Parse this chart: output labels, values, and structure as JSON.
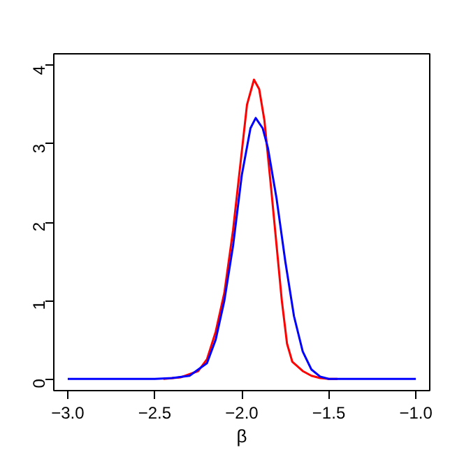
{
  "chart_data": {
    "type": "line",
    "xlabel": "β",
    "xlim": [
      -3.08,
      -0.92
    ],
    "ylim": [
      -0.15,
      4.15
    ],
    "xticks": [
      {
        "value": -3,
        "label": "−3.0"
      },
      {
        "value": -2.5,
        "label": "−2.5"
      },
      {
        "value": -2,
        "label": "−2.0"
      },
      {
        "value": -1.5,
        "label": "−1.5"
      },
      {
        "value": -1,
        "label": "−1.0"
      }
    ],
    "yticks": [
      0,
      1,
      2,
      3,
      4
    ],
    "grid": false,
    "series": [
      {
        "color": "#0000ff",
        "x": [
          -3.0,
          -2.5,
          -2.4,
          -2.3,
          -2.2,
          -2.15,
          -2.1,
          -2.05,
          -2.0,
          -1.95,
          -1.92,
          -1.88,
          -1.85,
          -1.8,
          -1.75,
          -1.7,
          -1.65,
          -1.6,
          -1.55,
          -1.5,
          -1.0
        ],
        "values": [
          0,
          0,
          0.01,
          0.04,
          0.2,
          0.5,
          1.0,
          1.7,
          2.6,
          3.2,
          3.33,
          3.2,
          2.95,
          2.3,
          1.5,
          0.8,
          0.35,
          0.12,
          0.03,
          0,
          0
        ]
      },
      {
        "color": "#ff0000",
        "x": [
          -2.45,
          -2.35,
          -2.25,
          -2.2,
          -2.15,
          -2.1,
          -2.05,
          -2.0,
          -1.97,
          -1.93,
          -1.9,
          -1.87,
          -1.83,
          -1.8,
          -1.77,
          -1.74,
          -1.71,
          -1.65,
          -1.6,
          -1.55,
          -1.5,
          -1.45
        ],
        "values": [
          0,
          0.02,
          0.1,
          0.25,
          0.6,
          1.1,
          1.9,
          2.9,
          3.5,
          3.82,
          3.7,
          3.3,
          2.4,
          1.7,
          1.0,
          0.45,
          0.22,
          0.1,
          0.04,
          0.01,
          0,
          0
        ]
      }
    ]
  }
}
